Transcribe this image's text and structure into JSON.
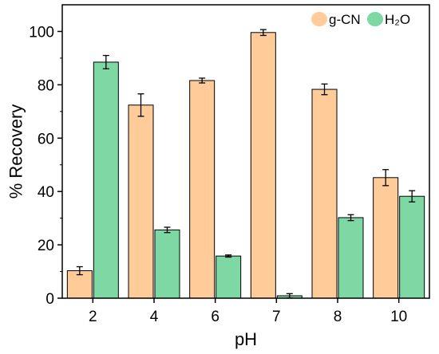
{
  "chart_data": {
    "type": "bar",
    "xlabel": "pH",
    "ylabel": "% Recovery",
    "ylim": [
      0,
      110
    ],
    "yticks": [
      0,
      20,
      40,
      60,
      80,
      100
    ],
    "grid": false,
    "legend_position": "top-right",
    "categories": [
      "2",
      "4",
      "6",
      "7",
      "8",
      "10"
    ],
    "series": [
      {
        "name": "g-CN",
        "color": "#FFCC99",
        "values": [
          10.3,
          72.4,
          81.6,
          99.6,
          78.3,
          45.2
        ],
        "errors": [
          1.5,
          4.2,
          0.9,
          1.1,
          2.0,
          3.0
        ]
      },
      {
        "name": "H₂O",
        "color": "#7DD8A4",
        "values": [
          88.5,
          25.6,
          15.8,
          0.9,
          30.2,
          38.2
        ],
        "errors": [
          2.5,
          1.0,
          0.4,
          0.8,
          1.1,
          2.1
        ]
      }
    ]
  }
}
